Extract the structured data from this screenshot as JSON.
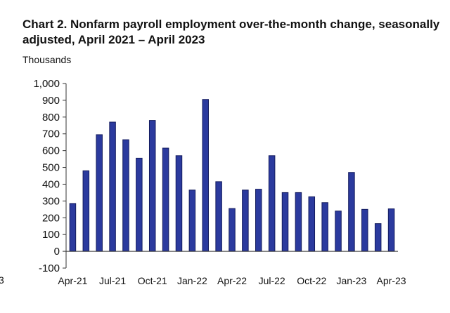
{
  "chart_data": {
    "type": "bar",
    "title": "Chart 2. Nonfarm payroll employment over-the-month change, seasonally adjusted, April 2021 – April 2023",
    "ylabel": "Thousands",
    "xlabel": "",
    "ylim": [
      -100,
      1000
    ],
    "yticks": [
      -100,
      0,
      100,
      200,
      300,
      400,
      500,
      600,
      700,
      800,
      900,
      1000
    ],
    "ytick_labels": [
      "-100",
      "0",
      "100",
      "200",
      "300",
      "400",
      "500",
      "600",
      "700",
      "800",
      "900",
      "1,000"
    ],
    "categories": [
      "Apr-21",
      "May-21",
      "Jun-21",
      "Jul-21",
      "Aug-21",
      "Sep-21",
      "Oct-21",
      "Nov-21",
      "Dec-21",
      "Jan-22",
      "Feb-22",
      "Mar-22",
      "Apr-22",
      "May-22",
      "Jun-22",
      "Jul-22",
      "Aug-22",
      "Sep-22",
      "Oct-22",
      "Nov-22",
      "Dec-22",
      "Jan-23",
      "Feb-23",
      "Mar-23",
      "Apr-23"
    ],
    "xtick_labels": [
      "Apr-21",
      "Jul-21",
      "Oct-21",
      "Jan-22",
      "Apr-22",
      "Jul-22",
      "Oct-22",
      "Jan-23",
      "Apr-23"
    ],
    "values": [
      285,
      480,
      695,
      770,
      665,
      555,
      780,
      615,
      570,
      365,
      905,
      415,
      255,
      365,
      370,
      570,
      350,
      350,
      325,
      290,
      240,
      470,
      250,
      165,
      253
    ],
    "bar_color": "#2b3a9e",
    "bar_edge_color": "#141c5e",
    "edge_label": "3",
    "grid": false,
    "legend": "none"
  }
}
